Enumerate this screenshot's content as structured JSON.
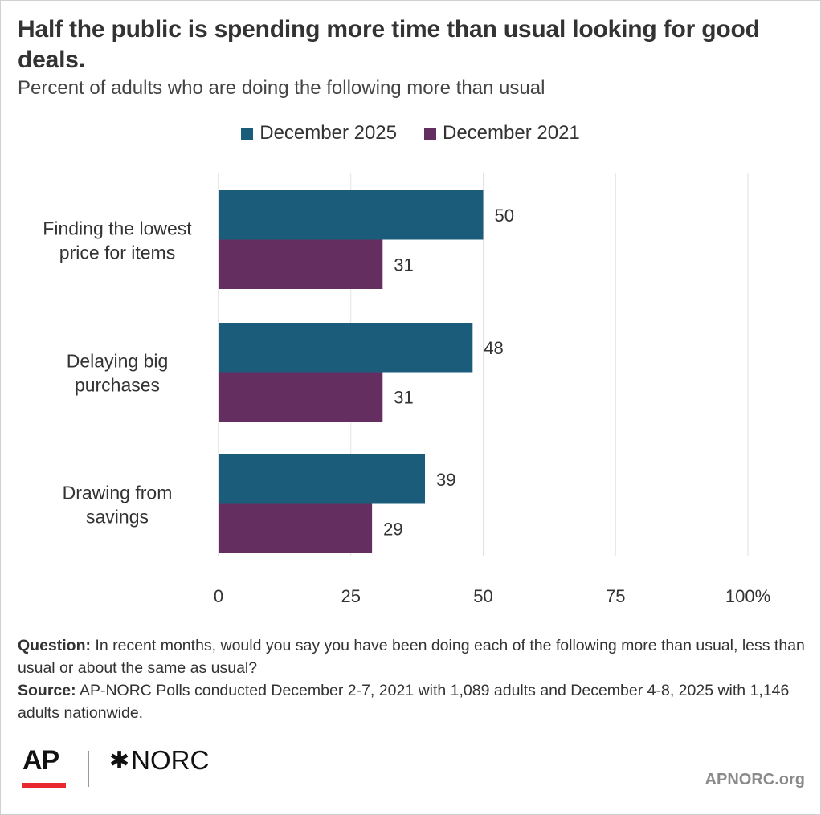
{
  "header": {
    "title": "Half the public is spending more time than usual looking for good deals.",
    "subtitle": "Percent of adults who are doing the following more than usual"
  },
  "legend": [
    {
      "label": "December 2025",
      "color": "#1b5c7b"
    },
    {
      "label": "December 2021",
      "color": "#642f60"
    }
  ],
  "chart_data": {
    "type": "bar",
    "orientation": "horizontal",
    "categories": [
      [
        "Finding the lowest",
        "price for items"
      ],
      [
        "Delaying big",
        "purchases"
      ],
      [
        "Drawing from",
        "savings"
      ]
    ],
    "series": [
      {
        "name": "December 2025",
        "color": "#1b5c7b",
        "values": [
          50,
          48,
          39
        ]
      },
      {
        "name": "December 2021",
        "color": "#642f60",
        "values": [
          31,
          31,
          29
        ]
      }
    ],
    "xlim": [
      0,
      100
    ],
    "xticks": [
      "0",
      "25",
      "50",
      "75",
      "100%"
    ],
    "xtick_values": [
      0,
      25,
      50,
      75,
      100
    ],
    "grid": true,
    "legend_position": "top"
  },
  "footer": {
    "question_label": "Question:",
    "question_text": " In recent months, would you say you have been doing each of the following more than usual, less than usual or about the same as usual?",
    "source_label": "Source:",
    "source_text": " AP-NORC Polls conducted December 2-7, 2021 with 1,089 adults and December 4-8, 2025 with 1,146 adults nationwide."
  },
  "branding": {
    "ap_logo": "AP",
    "norc_logo": "NORC",
    "norc_star_icon": "asterisk-star-icon",
    "site": "APNORC.org",
    "ap_accent": "#e8272e"
  }
}
